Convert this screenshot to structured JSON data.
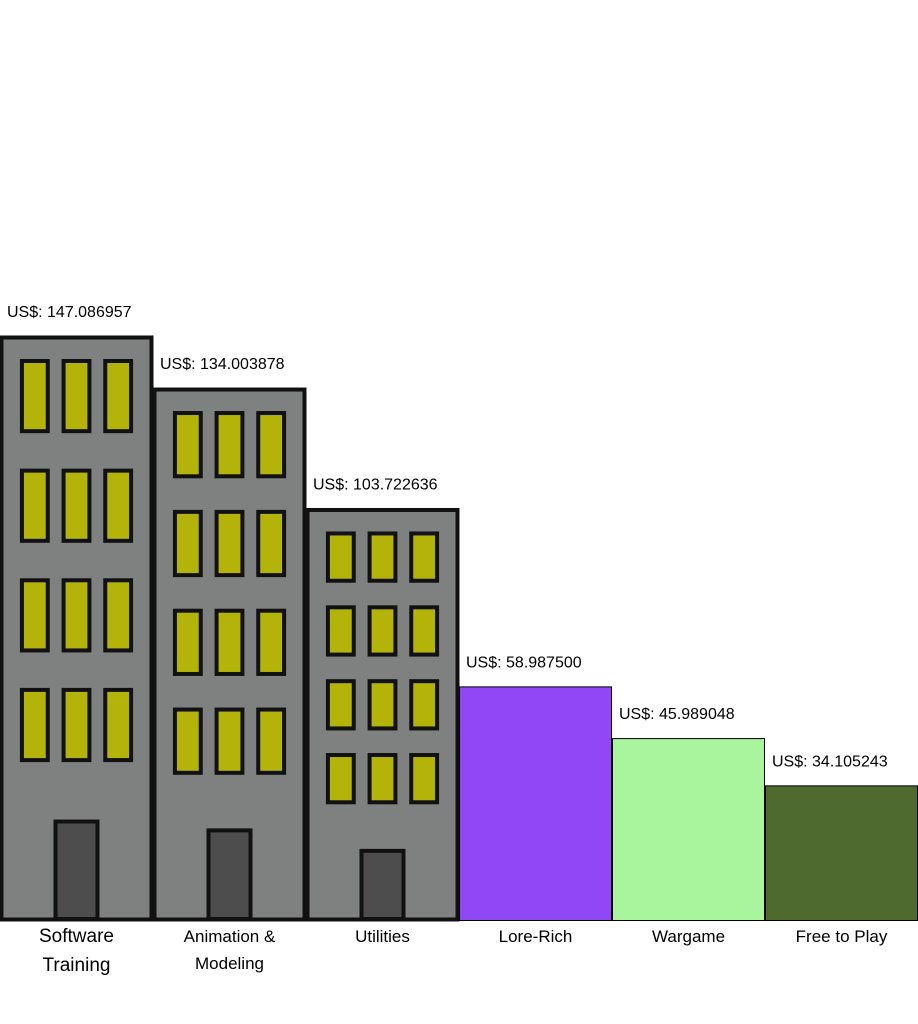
{
  "chart_data": {
    "type": "bar",
    "categories": [
      "Software Training",
      "Animation & Modeling",
      "Utilities",
      "Lore-Rich",
      "Wargame",
      "Free to Play"
    ],
    "category_lines": [
      [
        "Software",
        "Training"
      ],
      [
        "Animation &",
        "Modeling"
      ],
      [
        "Utilities"
      ],
      [
        "Lore-Rich"
      ],
      [
        "Wargame"
      ],
      [
        "Free to Play"
      ]
    ],
    "values": [
      147.086957,
      134.003878,
      103.722636,
      58.9875,
      45.989048,
      34.105243
    ],
    "value_labels": [
      "US$: 147.086957",
      "US$: 134.003878",
      "US$: 103.722636",
      "US$: 58.987500",
      "US$: 45.989048",
      "US$: 34.105243"
    ],
    "bar_styles": [
      "building",
      "building",
      "building",
      "plain",
      "plain",
      "plain"
    ],
    "colors": {
      "building_wall": "#7f8080",
      "building_outline": "#111111",
      "window": "#b3b30a",
      "door": "#4d4d4d",
      "bars": [
        "",
        "",
        "",
        "#9147f5",
        "#a8f59d",
        "#4f6a2e"
      ]
    },
    "title": "",
    "xlabel": "",
    "ylabel": "",
    "grid": false,
    "legend": false
  }
}
